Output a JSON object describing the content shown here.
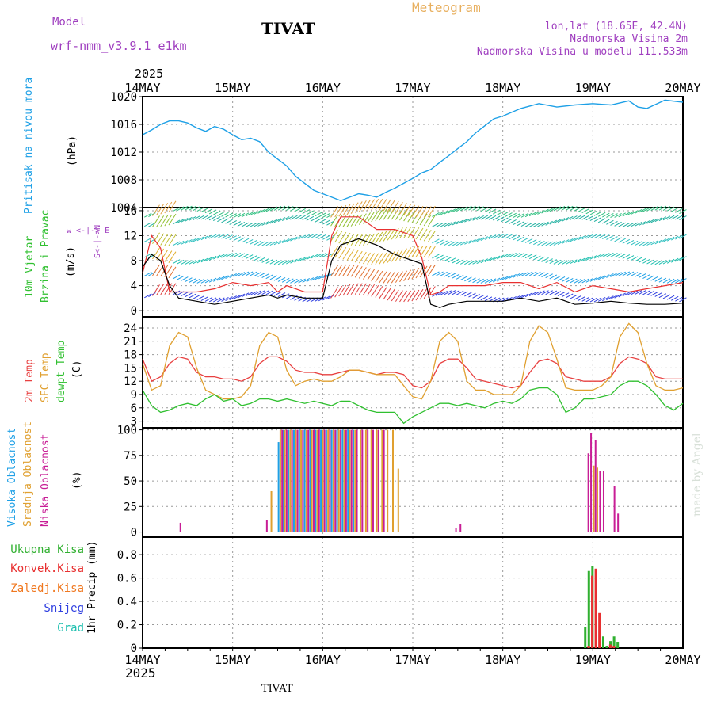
{
  "header": {
    "model_label": "Model",
    "model_name": "wrf-nmm_v3.9.1  e1km",
    "station": "TIVAT",
    "meteogram": "Meteogram",
    "lonlat": "lon,lat (18.65E, 42.4N)",
    "elevation": "Nadmorska Visina 2m",
    "model_elevation": "Nadmorska Visina u modelu 111.533m",
    "footer_station": "TIVAT",
    "watermark": "made by Angel"
  },
  "colors": {
    "pressure": "#1ea0e6",
    "wind_speed": "#000000",
    "wind_gust": "#e83030",
    "t2m": "#e84040",
    "sfc_temp": "#e0a030",
    "dewpoint": "#30c030",
    "high_cloud": "#1ea0e6",
    "mid_cloud": "#e0a030",
    "low_cloud": "#c81e96",
    "total_precip": "#30b030",
    "convective": "#e83030",
    "frozen": "#f07820",
    "snow": "#3040e0",
    "grad": "#20c0b0",
    "title_purple": "#a040c0",
    "meteogram": "#e8b060"
  },
  "x_axis": {
    "year": "2025",
    "ticks": [
      "14MAY",
      "15MAY",
      "16MAY",
      "17MAY",
      "18MAY",
      "19MAY",
      "20MAY"
    ]
  },
  "panels": {
    "pressure": {
      "label1": "Pritisak na nivou mora",
      "unit": "(hPa)"
    },
    "wind": {
      "label1": "10m Vjetar",
      "label2": "Brzina i Pravac",
      "unit": "(m/s)",
      "compass": "w <-|-> E",
      "compass2": "S<-|->N"
    },
    "temp": {
      "label1": "2m Temp",
      "label2": "SFC Temp",
      "label3": "dewpt Temp",
      "unit": "(C)"
    },
    "cloud": {
      "label1": "Visoka Oblacnost",
      "label2": "Srednja Oblacnost",
      "label3": "Niska Oblacnost",
      "unit": "(%)"
    },
    "precip": {
      "unit": "1hr Precip (mm)"
    }
  },
  "legend_precip": [
    "Ukupna Kisa",
    "Konvek.Kisa",
    "Zaledj.Kisa",
    "Snijeg",
    "Grad"
  ],
  "chart_data": [
    {
      "type": "line",
      "name": "pressure",
      "x_days": [
        0,
        0.1,
        0.2,
        0.3,
        0.4,
        0.5,
        0.6,
        0.7,
        0.8,
        0.9,
        1.0,
        1.1,
        1.2,
        1.3,
        1.4,
        1.5,
        1.6,
        1.7,
        1.8,
        1.9,
        2.0,
        2.1,
        2.2,
        2.3,
        2.4,
        2.5,
        2.6,
        2.7,
        2.8,
        2.9,
        3.0,
        3.1,
        3.2,
        3.3,
        3.4,
        3.5,
        3.6,
        3.7,
        3.8,
        3.9,
        4.0,
        4.2,
        4.4,
        4.6,
        4.8,
        5.0,
        5.2,
        5.4,
        5.5,
        5.6,
        5.8,
        6.0
      ],
      "values": [
        1014.5,
        1015.2,
        1016.0,
        1016.5,
        1016.5,
        1016.2,
        1015.5,
        1015.0,
        1015.7,
        1015.3,
        1014.5,
        1013.8,
        1014.0,
        1013.5,
        1012.0,
        1011.0,
        1010.0,
        1008.5,
        1007.5,
        1006.5,
        1006.0,
        1005.5,
        1005.0,
        1005.5,
        1006.0,
        1005.8,
        1005.5,
        1006.2,
        1006.8,
        1007.5,
        1008.2,
        1009.0,
        1009.5,
        1010.5,
        1011.5,
        1012.5,
        1013.5,
        1014.8,
        1015.8,
        1016.8,
        1017.2,
        1018.3,
        1019.0,
        1018.5,
        1018.8,
        1019.0,
        1018.8,
        1019.4,
        1018.5,
        1018.3,
        1019.5,
        1019.2
      ],
      "ylim": [
        1004,
        1020
      ],
      "yticks": [
        1004,
        1008,
        1012,
        1016,
        1020
      ]
    },
    {
      "type": "line",
      "name": "wind_speed",
      "x_days": [
        0,
        0.1,
        0.2,
        0.3,
        0.4,
        0.6,
        0.8,
        1.0,
        1.2,
        1.4,
        1.5,
        1.6,
        1.8,
        2.0,
        2.1,
        2.2,
        2.4,
        2.6,
        2.8,
        3.0,
        3.1,
        3.2,
        3.3,
        3.4,
        3.6,
        3.8,
        4.0,
        4.2,
        4.4,
        4.6,
        4.8,
        5.0,
        5.2,
        5.4,
        5.6,
        5.8,
        6.0
      ],
      "values": [
        7,
        9,
        8,
        4,
        2,
        1.5,
        1,
        1.5,
        2,
        2.5,
        2.0,
        2.5,
        2,
        2,
        8,
        10.5,
        11.5,
        10.5,
        9,
        8,
        7.5,
        1,
        0.5,
        1,
        1.5,
        1.5,
        1.5,
        2,
        1.5,
        2,
        1,
        1.2,
        1.5,
        1.2,
        1,
        1,
        1.2
      ],
      "ylim": [
        -1,
        16.5
      ],
      "yticks": [
        0,
        4,
        8,
        12,
        16
      ],
      "gust_values": [
        6,
        12,
        10,
        3,
        3,
        3,
        3.5,
        4.5,
        4,
        4.5,
        3,
        4,
        3,
        3,
        12,
        15,
        15,
        13,
        13,
        12,
        8.5,
        2.5,
        3,
        4,
        4,
        4,
        4.5,
        4.5,
        3.5,
        4.5,
        3,
        4,
        3.5,
        3,
        3.5,
        4,
        4.5
      ]
    },
    {
      "type": "line",
      "name": "temperature",
      "x_days": [
        0,
        0.1,
        0.2,
        0.3,
        0.4,
        0.5,
        0.6,
        0.7,
        0.8,
        0.9,
        1.0,
        1.1,
        1.2,
        1.3,
        1.4,
        1.5,
        1.6,
        1.7,
        1.8,
        1.9,
        2.0,
        2.1,
        2.2,
        2.3,
        2.4,
        2.5,
        2.6,
        2.7,
        2.8,
        2.9,
        3.0,
        3.1,
        3.2,
        3.3,
        3.4,
        3.5,
        3.6,
        3.7,
        3.8,
        3.9,
        4.0,
        4.1,
        4.2,
        4.3,
        4.4,
        4.5,
        4.6,
        4.7,
        4.8,
        4.9,
        5.0,
        5.1,
        5.2,
        5.3,
        5.4,
        5.5,
        5.6,
        5.7,
        5.8,
        5.9,
        6.0
      ],
      "series": [
        {
          "name": "2m Temp",
          "values": [
            17,
            12,
            13,
            16,
            17.5,
            17,
            14,
            13,
            13,
            12.5,
            12.5,
            12,
            13,
            16,
            17.5,
            17.5,
            16.5,
            14.5,
            14,
            14,
            13.5,
            13.5,
            14,
            14.5,
            14.5,
            14,
            13.5,
            14,
            14,
            13.5,
            11,
            10.5,
            12,
            16,
            17,
            17,
            15,
            12.5,
            12,
            11.5,
            11,
            10.5,
            11,
            14,
            16.5,
            17,
            16,
            13,
            12.5,
            12,
            12,
            12,
            13,
            16,
            17.5,
            17,
            16,
            13,
            12.5,
            12.5,
            12.5
          ]
        },
        {
          "name": "SFC Temp",
          "values": [
            16,
            10,
            11,
            20,
            23,
            22,
            15,
            10,
            9,
            8,
            8,
            8.5,
            11,
            20,
            23,
            22,
            14.5,
            11,
            12,
            12.5,
            12,
            12,
            13,
            14.5,
            14.5,
            14,
            13.5,
            13.5,
            13.5,
            11,
            8.5,
            8,
            12,
            21,
            23,
            21,
            12,
            10,
            10,
            9,
            9,
            9,
            11,
            21,
            24.5,
            23,
            17,
            10.5,
            10,
            10,
            10,
            11,
            13,
            22,
            25,
            23,
            16,
            11,
            10,
            10,
            10.5
          ]
        },
        {
          "name": "dewpt Temp",
          "values": [
            10,
            6.5,
            5,
            5.5,
            6.5,
            7,
            6.5,
            8,
            9,
            7.5,
            8,
            6.5,
            7,
            8,
            8,
            7.5,
            8,
            7.5,
            7,
            7.5,
            7,
            6.5,
            7.5,
            7.5,
            6.5,
            5.5,
            5,
            5,
            5,
            2.5,
            4,
            5,
            6,
            7,
            7,
            6.5,
            7,
            6.5,
            6,
            7,
            7.5,
            7,
            8,
            10,
            10.5,
            10.5,
            9,
            5,
            6,
            8,
            8,
            8.5,
            9,
            11,
            12,
            12,
            11,
            9,
            6.5,
            5.5,
            7
          ]
        }
      ],
      "ylim": [
        1.5,
        26.5
      ],
      "yticks": [
        3,
        6,
        9,
        12,
        15,
        18,
        21,
        24
      ]
    },
    {
      "type": "bar",
      "name": "cloud_cover",
      "ylim": [
        -5,
        102
      ],
      "yticks": [
        0,
        25,
        50,
        75,
        100
      ],
      "series": [
        {
          "name": "Visoka Oblacnost",
          "x_days": [
            1.51,
            1.56,
            1.62,
            1.68,
            1.74,
            1.8,
            1.86,
            1.92,
            1.98,
            2.04,
            2.1,
            2.16,
            2.22,
            2.28,
            2.34
          ],
          "values": [
            88,
            100,
            100,
            100,
            100,
            100,
            100,
            100,
            100,
            100,
            100,
            100,
            100,
            100,
            100
          ]
        },
        {
          "name": "Srednja Oblacnost",
          "x_days": [
            1.43,
            1.53,
            1.58,
            1.64,
            1.7,
            1.76,
            1.82,
            1.88,
            1.94,
            2.0,
            2.06,
            2.12,
            2.18,
            2.24,
            2.3,
            2.36,
            2.42,
            2.48,
            2.54,
            2.6,
            2.66,
            2.72,
            2.78,
            2.84,
            5.01,
            5.05
          ],
          "values": [
            40,
            100,
            100,
            100,
            100,
            100,
            100,
            100,
            100,
            100,
            100,
            100,
            100,
            100,
            100,
            100,
            100,
            100,
            100,
            100,
            100,
            100,
            100,
            62,
            65,
            63
          ]
        },
        {
          "name": "Niska Oblacnost",
          "x_days": [
            0.42,
            1.38,
            1.55,
            1.6,
            1.66,
            1.72,
            1.78,
            1.84,
            1.9,
            1.96,
            2.02,
            2.08,
            2.14,
            2.2,
            2.26,
            2.32,
            2.38,
            2.44,
            2.5,
            2.56,
            2.62,
            2.68,
            3.48,
            3.53,
            4.95,
            4.98,
            5.03,
            5.08,
            5.12,
            5.24,
            5.28
          ],
          "values": [
            9,
            12,
            100,
            100,
            100,
            100,
            100,
            100,
            100,
            100,
            100,
            100,
            100,
            100,
            100,
            100,
            100,
            100,
            100,
            100,
            100,
            100,
            4,
            8,
            77,
            97,
            90,
            60,
            60,
            45,
            18
          ]
        }
      ]
    },
    {
      "type": "bar",
      "name": "precipitation",
      "ylim": [
        0,
        0.95
      ],
      "yticks": [
        0,
        0.2,
        0.4,
        0.6,
        0.8
      ],
      "series": [
        {
          "name": "Ukupna Kisa",
          "x_days": [
            4.92,
            4.96,
            5.0,
            5.04,
            5.08,
            5.12,
            5.16,
            5.2,
            5.24,
            5.28
          ],
          "values": [
            0.18,
            0.66,
            0.7,
            0.41,
            0.16,
            0.1,
            0.02,
            0.06,
            0.1,
            0.05
          ]
        },
        {
          "name": "Konvek.Kisa",
          "x_days": [
            4.94,
            4.98,
            5.02,
            5.06,
            5.18,
            5.22
          ],
          "values": [
            0.02,
            0.62,
            0.68,
            0.3,
            0.03,
            0.02
          ]
        }
      ]
    }
  ]
}
